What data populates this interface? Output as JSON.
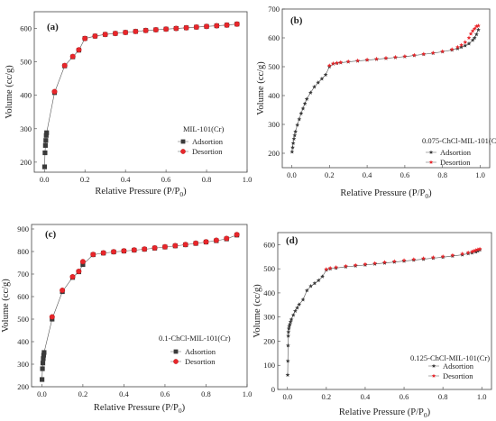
{
  "chart_data": [
    {
      "type": "scatter",
      "panel_label": "(a)",
      "sample_label": "MIL-101(Cr)",
      "xlabel": "Relative Pressure (P/P",
      "xlabel_sub": "0",
      "xlabel_tail": ")",
      "ylabel": "Volume (cc/g)",
      "xlim": [
        -0.05,
        1.0
      ],
      "ylim": [
        170,
        650
      ],
      "xticks": [
        0.0,
        0.2,
        0.4,
        0.6,
        0.8,
        1.0
      ],
      "xtick_labels": [
        "0.0",
        "0.2",
        "0.4",
        "0.6",
        "0.8",
        "1.0"
      ],
      "yticks": [
        200,
        300,
        400,
        500,
        600
      ],
      "ytick_labels": [
        "200",
        "300",
        "400",
        "500",
        "600"
      ],
      "legend_position": "bottom-right",
      "series": [
        {
          "name": "Adsortion",
          "color": "#3a3a3a",
          "marker": "square",
          "x": [
            0.001,
            0.003,
            0.005,
            0.007,
            0.009,
            0.011,
            0.05,
            0.1,
            0.14,
            0.17,
            0.2,
            0.25,
            0.3,
            0.35,
            0.4,
            0.45,
            0.5,
            0.55,
            0.6,
            0.65,
            0.7,
            0.75,
            0.8,
            0.85,
            0.9,
            0.95
          ],
          "y": [
            186,
            228,
            250,
            265,
            280,
            288,
            408,
            488,
            515,
            535,
            570,
            577,
            582,
            585,
            588,
            591,
            594,
            596,
            598,
            600,
            602,
            604,
            606,
            608,
            610,
            613
          ]
        },
        {
          "name": "Desortion",
          "color": "#e8262b",
          "marker": "circle",
          "x": [
            0.95,
            0.9,
            0.85,
            0.8,
            0.75,
            0.7,
            0.65,
            0.6,
            0.55,
            0.5,
            0.45,
            0.4,
            0.35,
            0.3,
            0.25,
            0.2,
            0.17,
            0.14,
            0.1,
            0.05
          ],
          "y": [
            613,
            610,
            608,
            606,
            604,
            602,
            600,
            598,
            596,
            594,
            591,
            588,
            585,
            582,
            577,
            570,
            536,
            516,
            489,
            411
          ]
        }
      ]
    },
    {
      "type": "scatter",
      "panel_label": "(b)",
      "sample_label": "0.075-ChCl-MIL-101(Cr)",
      "xlabel": "Relative Pressure (P/P",
      "xlabel_sub": "0",
      "xlabel_tail": ")",
      "ylabel": "Volume (cc/g)",
      "xlim": [
        -0.05,
        1.05
      ],
      "ylim": [
        150,
        700
      ],
      "xticks": [
        0.0,
        0.2,
        0.4,
        0.6,
        0.8,
        1.0
      ],
      "xtick_labels": [
        "0.0",
        "0.2",
        "0.4",
        "0.6",
        "0.8",
        "1.0"
      ],
      "yticks": [
        200,
        300,
        400,
        500,
        600,
        700
      ],
      "ytick_labels": [
        "200",
        "300",
        "400",
        "500",
        "600",
        "700"
      ],
      "legend_position": "bottom-right",
      "series": [
        {
          "name": "Adsortion",
          "color": "#3a3a3a",
          "marker": "star",
          "x": [
            0.002,
            0.005,
            0.008,
            0.012,
            0.016,
            0.02,
            0.03,
            0.04,
            0.05,
            0.06,
            0.07,
            0.08,
            0.1,
            0.12,
            0.14,
            0.16,
            0.18,
            0.2,
            0.22,
            0.24,
            0.26,
            0.3,
            0.35,
            0.4,
            0.45,
            0.5,
            0.55,
            0.6,
            0.65,
            0.7,
            0.75,
            0.8,
            0.85,
            0.88,
            0.9,
            0.92,
            0.94,
            0.96,
            0.97,
            0.98,
            0.99
          ],
          "y": [
            205,
            220,
            235,
            250,
            262,
            275,
            298,
            318,
            338,
            355,
            372,
            388,
            410,
            430,
            445,
            458,
            472,
            500,
            510,
            512,
            514,
            517,
            520,
            523,
            526,
            529,
            532,
            535,
            539,
            543,
            547,
            552,
            558,
            563,
            568,
            573,
            580,
            592,
            600,
            612,
            628
          ]
        },
        {
          "name": "Desortion",
          "color": "#e8262b",
          "marker": "star",
          "x": [
            0.99,
            0.98,
            0.97,
            0.96,
            0.95,
            0.94,
            0.92,
            0.9,
            0.88,
            0.85,
            0.8,
            0.75,
            0.7,
            0.65,
            0.6,
            0.55,
            0.5,
            0.45,
            0.4,
            0.35,
            0.3,
            0.26,
            0.24,
            0.22,
            0.2
          ],
          "y": [
            642,
            640,
            632,
            624,
            614,
            600,
            585,
            575,
            568,
            560,
            553,
            548,
            544,
            540,
            536,
            533,
            530,
            527,
            524,
            521,
            518,
            515,
            513,
            511,
            504
          ]
        }
      ]
    },
    {
      "type": "scatter",
      "panel_label": "(c)",
      "sample_label": "0.1-ChCl-MIL-101(Cr)",
      "xlabel": "Relative Pressure (P/P",
      "xlabel_sub": "0",
      "xlabel_tail": ")",
      "ylabel": "Volume (cc/g)",
      "xlim": [
        -0.05,
        1.0
      ],
      "ylim": [
        200,
        920
      ],
      "xticks": [
        0.0,
        0.2,
        0.4,
        0.6,
        0.8,
        1.0
      ],
      "xtick_labels": [
        "0.0",
        "0.2",
        "0.4",
        "0.6",
        "0.8",
        "1.0"
      ],
      "yticks": [
        200,
        300,
        400,
        500,
        600,
        700,
        800,
        900
      ],
      "ytick_labels": [
        "200",
        "300",
        "400",
        "500",
        "600",
        "700",
        "800",
        "900"
      ],
      "legend_position": "bottom-right",
      "series": [
        {
          "name": "Adsortion",
          "color": "#3a3a3a",
          "marker": "square",
          "x": [
            0.001,
            0.003,
            0.005,
            0.007,
            0.009,
            0.011,
            0.05,
            0.1,
            0.15,
            0.18,
            0.2,
            0.25,
            0.3,
            0.35,
            0.4,
            0.45,
            0.5,
            0.55,
            0.6,
            0.65,
            0.7,
            0.75,
            0.8,
            0.85,
            0.9,
            0.95
          ],
          "y": [
            232,
            280,
            305,
            325,
            340,
            352,
            500,
            622,
            685,
            710,
            742,
            786,
            793,
            798,
            802,
            806,
            810,
            815,
            820,
            825,
            830,
            836,
            842,
            848,
            856,
            873
          ]
        },
        {
          "name": "Desortion",
          "color": "#e8262b",
          "marker": "circle",
          "x": [
            0.95,
            0.9,
            0.85,
            0.8,
            0.75,
            0.7,
            0.65,
            0.6,
            0.55,
            0.5,
            0.45,
            0.4,
            0.35,
            0.3,
            0.25,
            0.2,
            0.18,
            0.15,
            0.1,
            0.05
          ],
          "y": [
            875,
            858,
            850,
            843,
            837,
            831,
            826,
            821,
            816,
            811,
            807,
            803,
            799,
            794,
            787,
            755,
            712,
            688,
            628,
            510
          ]
        }
      ]
    },
    {
      "type": "scatter",
      "panel_label": "(d)",
      "sample_label": "0.125-ChCl-MIL-101(Cr)",
      "xlabel": "Relative Pressure (P/P",
      "xlabel_sub": "0",
      "xlabel_tail": ")",
      "ylabel": "Volume (cc/g)",
      "xlim": [
        -0.05,
        1.05
      ],
      "ylim": [
        0,
        650
      ],
      "xticks": [
        0.0,
        0.2,
        0.4,
        0.6,
        0.8,
        1.0
      ],
      "xtick_labels": [
        "0.0",
        "0.2",
        "0.4",
        "0.6",
        "0.8",
        "1.0"
      ],
      "yticks": [
        0,
        100,
        200,
        300,
        400,
        500,
        600
      ],
      "ytick_labels": [
        "0",
        "100",
        "200",
        "300",
        "400",
        "500",
        "600"
      ],
      "legend_position": "bottom-right",
      "series": [
        {
          "name": "Adsortion",
          "color": "#3a3a3a",
          "marker": "star",
          "x": [
            0.001,
            0.002,
            0.003,
            0.004,
            0.005,
            0.007,
            0.009,
            0.012,
            0.016,
            0.02,
            0.03,
            0.04,
            0.05,
            0.06,
            0.08,
            0.1,
            0.12,
            0.14,
            0.16,
            0.18,
            0.2,
            0.22,
            0.25,
            0.3,
            0.35,
            0.4,
            0.45,
            0.5,
            0.55,
            0.6,
            0.65,
            0.7,
            0.75,
            0.8,
            0.85,
            0.9,
            0.93,
            0.95,
            0.97,
            0.98,
            0.99
          ],
          "y": [
            60,
            118,
            182,
            222,
            238,
            252,
            262,
            270,
            280,
            290,
            308,
            325,
            338,
            352,
            372,
            410,
            428,
            440,
            452,
            468,
            495,
            500,
            503,
            508,
            512,
            516,
            520,
            524,
            528,
            532,
            536,
            540,
            544,
            548,
            553,
            558,
            563,
            566,
            570,
            574,
            578
          ]
        },
        {
          "name": "Desortion",
          "color": "#e8262b",
          "marker": "star",
          "x": [
            0.99,
            0.98,
            0.97,
            0.96,
            0.95,
            0.93,
            0.9,
            0.85,
            0.8,
            0.75,
            0.7,
            0.65,
            0.6,
            0.55,
            0.5,
            0.45,
            0.4,
            0.35,
            0.3,
            0.25,
            0.22,
            0.2
          ],
          "y": [
            582,
            580,
            577,
            574,
            571,
            567,
            562,
            556,
            551,
            547,
            543,
            539,
            535,
            531,
            527,
            523,
            519,
            515,
            511,
            506,
            503,
            498
          ]
        }
      ]
    }
  ]
}
